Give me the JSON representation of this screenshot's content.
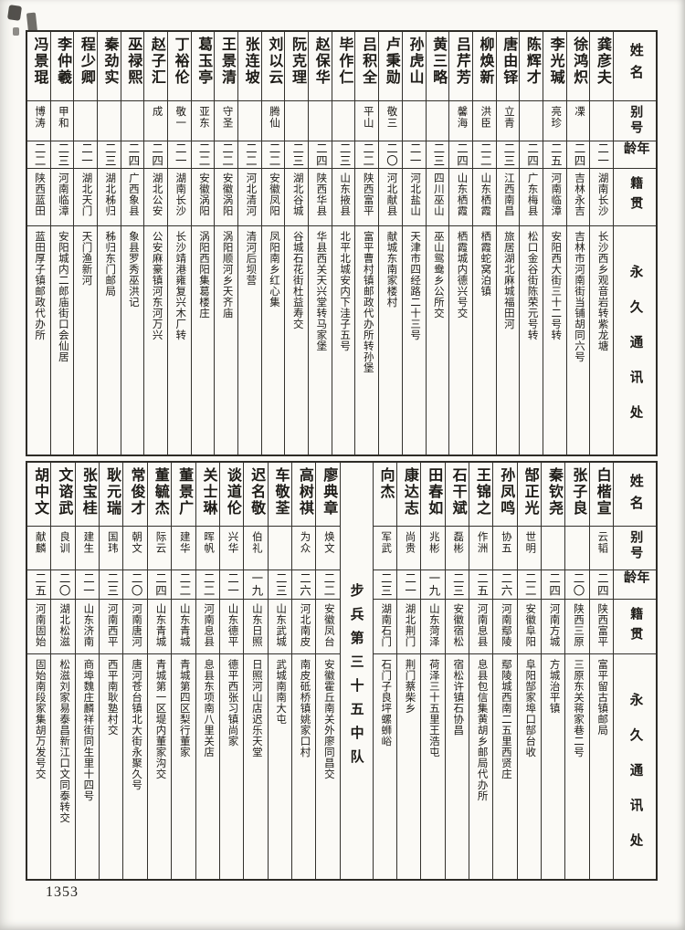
{
  "page": {
    "number": "1353"
  },
  "headers": {
    "name": "姓名",
    "alias": "别号",
    "age": "年龄",
    "native": "籍贯",
    "address": "永久通讯处"
  },
  "divider": {
    "label": "步兵第三十五中队"
  },
  "table_top": {
    "entries": [
      {
        "name": "龚彦夫",
        "alias": "",
        "age": "二一",
        "native": "湖南长沙",
        "address": "长沙西乡观音岩转紫龙塘"
      },
      {
        "name": "徐鸿炽",
        "alias": "凓",
        "age": "二四",
        "native": "吉林永吉",
        "address": "吉林市河南街当铺胡同六号"
      },
      {
        "name": "李光瑊",
        "alias": "亮珍",
        "age": "二五",
        "native": "河南临漳",
        "address": "安阳西大街三十二号转"
      },
      {
        "name": "陈辉才",
        "alias": "",
        "age": "二四",
        "native": "广东梅县",
        "address": "松口金谷街陈荣元号转"
      },
      {
        "name": "唐由铎",
        "alias": "立青",
        "age": "二三",
        "native": "江西南昌",
        "address": "旅居湖北麻城福田河"
      },
      {
        "name": "柳焕新",
        "alias": "洪臣",
        "age": "二二",
        "native": "山东栖霞",
        "address": "栖霞蛇窝泊镇"
      },
      {
        "name": "吕芹芳",
        "alias": "馨海",
        "age": "二四",
        "native": "山东栖霞",
        "address": "栖霞城内德兴号交"
      },
      {
        "name": "黄三略",
        "alias": "",
        "age": "二三",
        "native": "四川巫山",
        "address": "巫山鸳鸯乡公所交"
      },
      {
        "name": "孙虎山",
        "alias": "",
        "age": "二一",
        "native": "河北盐山",
        "address": "天津市四经路二十三号"
      },
      {
        "name": "卢秉勋",
        "alias": "敬三",
        "age": "二〇",
        "native": "河北献县",
        "address": "献城东南家楼村"
      },
      {
        "name": "吕积全",
        "alias": "平山",
        "age": "二二",
        "native": "陕西富平",
        "address": "富平曹村镇邮政代办所转孙堡"
      },
      {
        "name": "毕作仁",
        "alias": "",
        "age": "二三",
        "native": "山东掖县",
        "address": "北平北城安内下洼子五号"
      },
      {
        "name": "赵保华",
        "alias": "",
        "age": "二四",
        "native": "陕西华县",
        "address": "华县西关天兴堂转马家堡"
      },
      {
        "name": "阮克理",
        "alias": "",
        "age": "二三",
        "native": "湖北谷城",
        "address": "谷城石花街杜益寿交"
      },
      {
        "name": "刘以云",
        "alias": "腾仙",
        "age": "二二",
        "native": "安徽凤阳",
        "address": "凤阳南乡红心集"
      },
      {
        "name": "张连坡",
        "alias": "",
        "age": "二二",
        "native": "河北清河",
        "address": "清河后坝营"
      },
      {
        "name": "王景清",
        "alias": "守圣",
        "age": "二二",
        "native": "安徽涡阳",
        "address": "涡阳顺河乡天齐庙"
      },
      {
        "name": "葛玉亭",
        "alias": "亚东",
        "age": "二二",
        "native": "安徽涡阳",
        "address": "涡阳西阳集葛楼庄"
      },
      {
        "name": "丁裕伦",
        "alias": "敬一",
        "age": "二一",
        "native": "湖南长沙",
        "address": "长沙靖港雍复兴木厂转"
      },
      {
        "name": "赵子汇",
        "alias": "成",
        "age": "二四",
        "native": "湖北公安",
        "address": "公安麻豪镇河东河万兴"
      },
      {
        "name": "巫禄熙",
        "alias": "",
        "age": "二四",
        "native": "广西象县",
        "address": "象县罗秀巫洪记"
      },
      {
        "name": "秦劲实",
        "alias": "",
        "age": "二三",
        "native": "湖北秭归",
        "address": "秭归东门邮局"
      },
      {
        "name": "程少卿",
        "alias": "",
        "age": "二一",
        "native": "湖北天门",
        "address": "天门渔新河"
      },
      {
        "name": "李仲羲",
        "alias": "甲和",
        "age": "二三",
        "native": "河南临漳",
        "address": "安阳城内二郎庙街口会仙居"
      },
      {
        "name": "冯景琨",
        "alias": "博涛",
        "age": "二二",
        "native": "陕西蓝田",
        "address": "蓝田厚子镇邮政代办所"
      }
    ]
  },
  "table_bottom": {
    "divider_after_index": 9,
    "entries": [
      {
        "name": "白楷宣",
        "alias": "云韬",
        "age": "二四",
        "native": "陕西富平",
        "address": "富平留古镇邮局"
      },
      {
        "name": "张子良",
        "alias": "",
        "age": "二〇",
        "native": "陕西三原",
        "address": "三原东关蒋家巷二号"
      },
      {
        "name": "秦钦尧",
        "alias": "",
        "age": "二四",
        "native": "河南方城",
        "address": "方城治平镇"
      },
      {
        "name": "郜正光",
        "alias": "世明",
        "age": "二二",
        "native": "安徽阜阳",
        "address": "阜阳郜家埠口郜台收"
      },
      {
        "name": "孙凤鸣",
        "alias": "协五",
        "age": "二六",
        "native": "河南鄢陵",
        "address": "鄢陵城西南二五里西贤庄"
      },
      {
        "name": "王锦之",
        "alias": "作洲",
        "age": "二五",
        "native": "河南息县",
        "address": "息县包信集黄胡乡邮局代办所"
      },
      {
        "name": "石干斌",
        "alias": "磊彬",
        "age": "二三",
        "native": "安徽宿松",
        "address": "宿松许镇石协昌"
      },
      {
        "name": "田春如",
        "alias": "兆彬",
        "age": "一九",
        "native": "山东菏泽",
        "address": "荷泽三十五里王浩屯"
      },
      {
        "name": "康达志",
        "alias": "尚贵",
        "age": "二一",
        "native": "湖北荆门",
        "address": "荆门蔡柴乡"
      },
      {
        "name": "向杰",
        "alias": "军武",
        "age": "二三",
        "native": "湖南石门",
        "address": "石门子良坪螺蛳峪"
      },
      {
        "name": "廖典章",
        "alias": "焕文",
        "age": "二二",
        "native": "安徽凤台",
        "address": "安徽霍丘南关外廖同昌交"
      },
      {
        "name": "高树祺",
        "alias": "为众",
        "age": "二六",
        "native": "河北南皮",
        "address": "南皮砥桥镇姚家口村"
      },
      {
        "name": "车敬荃",
        "alias": "",
        "age": "二三",
        "native": "山东武城",
        "address": "武城南南大屯"
      },
      {
        "name": "迟名敬",
        "alias": "伯礼",
        "age": "一九",
        "native": "山东日照",
        "address": "日照河山店迟乐天堂"
      },
      {
        "name": "谈道伦",
        "alias": "兴华",
        "age": "二一",
        "native": "山东德平",
        "address": "德平西张习镇尚家"
      },
      {
        "name": "关士琳",
        "alias": "晖帆",
        "age": "二二",
        "native": "河南息县",
        "address": "息县东项南八里关店"
      },
      {
        "name": "董景广",
        "alias": "建华",
        "age": "二二",
        "native": "山东青城",
        "address": "青城第四区梨行董家"
      },
      {
        "name": "董毓杰",
        "alias": "际云",
        "age": "二四",
        "native": "山东青城",
        "address": "青城第一区堤内董家沟交"
      },
      {
        "name": "常俊才",
        "alias": "朝文",
        "age": "二〇",
        "native": "河南唐河",
        "address": "唐河苍台镇北大街永聚久号"
      },
      {
        "name": "耿元瑞",
        "alias": "国玮",
        "age": "二三",
        "native": "河南西平",
        "address": "西平南耿塾村交"
      },
      {
        "name": "张宝桂",
        "alias": "建生",
        "age": "二一",
        "native": "山东济南",
        "address": "商埠魏庄麟祥街同生里十四号"
      },
      {
        "name": "文谘武",
        "alias": "良训",
        "age": "二〇",
        "native": "湖北松滋",
        "address": "松滋刘家易泰昌新江口文同泰转交"
      },
      {
        "name": "胡中文",
        "alias": "献麟",
        "age": "二五",
        "native": "河南固始",
        "address": "固始南段家集胡万发号交"
      }
    ]
  }
}
